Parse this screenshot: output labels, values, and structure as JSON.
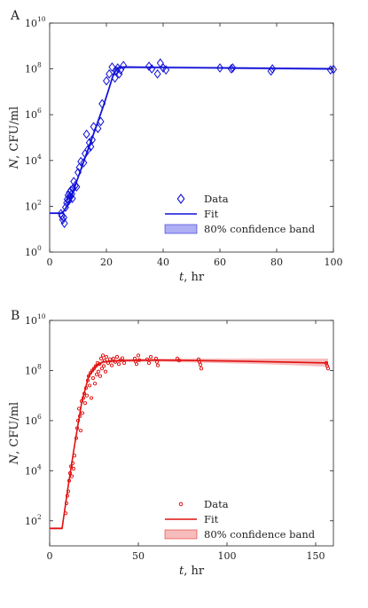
{
  "chart_data": [
    {
      "panel_label": "A",
      "type": "scatter",
      "title": "",
      "xlabel": "t",
      "xunit": ", hr",
      "ylabel": "N",
      "yunit": ", CFU/ml",
      "xlim": [
        0,
        100
      ],
      "ylim_log10": [
        0,
        10
      ],
      "y_scale": "log",
      "xticks": [
        "0",
        "20",
        "40",
        "60",
        "80",
        "100"
      ],
      "yticks": [
        "10",
        "10",
        "10",
        "10",
        "10",
        "10"
      ],
      "ytick_exponents": [
        "0",
        "2",
        "4",
        "6",
        "8",
        "10"
      ],
      "marker": "diamond",
      "color": "#1010d8",
      "band_color": "#8c8cf0",
      "grid": false,
      "legend_position": "bottom-right",
      "legend": [
        "Data",
        "Fit",
        "80% confidence band"
      ],
      "series": [
        {
          "kind": "data",
          "points": [
            [
              4,
              48
            ],
            [
              4.3,
              38
            ],
            [
              4.6,
              26
            ],
            [
              5,
              32
            ],
            [
              5.2,
              18
            ],
            [
              5.6,
              90
            ],
            [
              6,
              140
            ],
            [
              6.2,
              200
            ],
            [
              6.5,
              300
            ],
            [
              6.8,
              180
            ],
            [
              7,
              400
            ],
            [
              7.3,
              260
            ],
            [
              7.5,
              500
            ],
            [
              7.8,
              350
            ],
            [
              8,
              220
            ],
            [
              8.3,
              600
            ],
            [
              8.5,
              1200
            ],
            [
              9,
              800
            ],
            [
              9.5,
              700
            ],
            [
              10,
              3000
            ],
            [
              10.5,
              5000
            ],
            [
              11,
              9000
            ],
            [
              12,
              8000
            ],
            [
              12.5,
              20000
            ],
            [
              13,
              140000
            ],
            [
              13.5,
              30000
            ],
            [
              14,
              60000
            ],
            [
              14.5,
              40000
            ],
            [
              15,
              80000
            ],
            [
              15.5,
              300000
            ],
            [
              17,
              250000
            ],
            [
              18,
              500000
            ],
            [
              18.5,
              3000000
            ],
            [
              20,
              30000000
            ],
            [
              21,
              60000000
            ],
            [
              22,
              120000000
            ],
            [
              23,
              40000000
            ],
            [
              23.5,
              80000000
            ],
            [
              24,
              110000000
            ],
            [
              24.5,
              60000000
            ],
            [
              25,
              90000000
            ],
            [
              26,
              140000000
            ],
            [
              35,
              130000000
            ],
            [
              36,
              100000000
            ],
            [
              38,
              60000000
            ],
            [
              39,
              180000000
            ],
            [
              40,
              110000000
            ],
            [
              41,
              90000000
            ],
            [
              60,
              110000000
            ],
            [
              64,
              100000000
            ],
            [
              64.5,
              110000000
            ],
            [
              78,
              80000000
            ],
            [
              78.5,
              100000000
            ],
            [
              99,
              90000000
            ],
            [
              100,
              95000000
            ]
          ]
        },
        {
          "kind": "fit",
          "points": [
            [
              0,
              50
            ],
            [
              4.5,
              50
            ],
            [
              7,
              150
            ],
            [
              10,
              1800
            ],
            [
              13,
              20000
            ],
            [
              16,
              220000
            ],
            [
              19,
              2500000
            ],
            [
              21,
              15000000
            ],
            [
              22.5,
              60000000
            ],
            [
              24,
              110000000
            ],
            [
              26,
              120000000
            ],
            [
              40,
              115000000
            ],
            [
              60,
              110000000
            ],
            [
              80,
              105000000
            ],
            [
              100,
              100000000
            ]
          ]
        },
        {
          "kind": "band",
          "upper": [
            [
              0,
              55
            ],
            [
              4.5,
              55
            ],
            [
              7,
              190
            ],
            [
              10,
              2300
            ],
            [
              13,
              26000
            ],
            [
              16,
              290000
            ],
            [
              19,
              3300000
            ],
            [
              21,
              20000000
            ],
            [
              22.5,
              80000000
            ],
            [
              24,
              130000000
            ],
            [
              26,
              135000000
            ],
            [
              40,
              130000000
            ],
            [
              60,
              124000000
            ],
            [
              80,
              118000000
            ],
            [
              100,
              112000000
            ]
          ],
          "lower": [
            [
              0,
              45
            ],
            [
              4.5,
              45
            ],
            [
              7,
              115
            ],
            [
              10,
              1400
            ],
            [
              13,
              15000
            ],
            [
              16,
              170000
            ],
            [
              19,
              1900000
            ],
            [
              21,
              11000000
            ],
            [
              22.5,
              45000000
            ],
            [
              24,
              90000000
            ],
            [
              26,
              105000000
            ],
            [
              40,
              102000000
            ],
            [
              60,
              98000000
            ],
            [
              80,
              93000000
            ],
            [
              100,
              88000000
            ]
          ]
        }
      ]
    },
    {
      "panel_label": "B",
      "type": "scatter",
      "title": "",
      "xlabel": "t",
      "xunit": ", hr",
      "ylabel": "N",
      "yunit": ", CFU/ml",
      "xlim": [
        0,
        160
      ],
      "ylim_log10": [
        1,
        10
      ],
      "y_scale": "log",
      "xticks": [
        "0",
        "50",
        "100",
        "150"
      ],
      "yticks": [
        "10",
        "10",
        "10",
        "10",
        "10"
      ],
      "ytick_exponents": [
        "2",
        "4",
        "6",
        "8",
        "10"
      ],
      "marker": "circle",
      "color": "#e01010",
      "band_color": "#f4a0a0",
      "grid": false,
      "legend_position": "bottom-right",
      "legend": [
        "Data",
        "Fit",
        "80% confidence band"
      ],
      "series": [
        {
          "kind": "data",
          "points": [
            [
              9,
              200
            ],
            [
              9.5,
              500
            ],
            [
              10,
              1000
            ],
            [
              10.5,
              1500
            ],
            [
              11,
              4000
            ],
            [
              11.5,
              8000
            ],
            [
              12,
              15000
            ],
            [
              12.5,
              6000
            ],
            [
              13,
              20000
            ],
            [
              13.5,
              12000
            ],
            [
              14,
              40000
            ],
            [
              15,
              200000
            ],
            [
              15.5,
              500000
            ],
            [
              16,
              1000000
            ],
            [
              16.5,
              3000000
            ],
            [
              17,
              1500000
            ],
            [
              17.5,
              400000
            ],
            [
              18,
              6000000
            ],
            [
              18.5,
              2000000
            ],
            [
              19,
              8000000
            ],
            [
              19.5,
              12000000
            ],
            [
              20,
              5000000
            ],
            [
              20.5,
              20000000
            ],
            [
              21,
              10000000
            ],
            [
              21.5,
              40000000
            ],
            [
              22,
              60000000
            ],
            [
              22.5,
              25000000
            ],
            [
              23,
              80000000
            ],
            [
              23.5,
              8000000
            ],
            [
              24,
              100000000
            ],
            [
              24.5,
              50000000
            ],
            [
              25,
              120000000
            ],
            [
              25.5,
              30000000
            ],
            [
              26,
              150000000
            ],
            [
              26.5,
              70000000
            ],
            [
              27,
              200000000
            ],
            [
              27.5,
              90000000
            ],
            [
              28,
              180000000
            ],
            [
              28.5,
              60000000
            ],
            [
              29,
              300000000
            ],
            [
              29.5,
              120000000
            ],
            [
              30,
              400000000
            ],
            [
              30.5,
              150000000
            ],
            [
              31,
              250000000
            ],
            [
              31.5,
              90000000
            ],
            [
              32,
              350000000
            ],
            [
              33,
              200000000
            ],
            [
              34,
              280000000
            ],
            [
              35,
              160000000
            ],
            [
              36,
              300000000
            ],
            [
              37,
              220000000
            ],
            [
              38,
              350000000
            ],
            [
              39,
              180000000
            ],
            [
              40,
              260000000
            ],
            [
              41,
              310000000
            ],
            [
              42,
              200000000
            ],
            [
              48,
              300000000
            ],
            [
              48.5,
              230000000
            ],
            [
              49,
              180000000
            ],
            [
              50,
              400000000
            ],
            [
              50.5,
              260000000
            ],
            [
              55,
              280000000
            ],
            [
              56,
              200000000
            ],
            [
              57,
              350000000
            ],
            [
              60,
              300000000
            ],
            [
              60.5,
              220000000
            ],
            [
              61,
              160000000
            ],
            [
              72,
              300000000
            ],
            [
              73,
              250000000
            ],
            [
              84,
              280000000
            ],
            [
              84.5,
              220000000
            ],
            [
              85,
              170000000
            ],
            [
              85.5,
              120000000
            ],
            [
              156,
              200000000
            ],
            [
              156.5,
              150000000
            ],
            [
              157,
              120000000
            ]
          ]
        },
        {
          "kind": "fit",
          "points": [
            [
              0,
              50
            ],
            [
              7,
              50
            ],
            [
              10,
              1500
            ],
            [
              14,
              100000
            ],
            [
              18,
              5000000
            ],
            [
              22,
              60000000
            ],
            [
              26,
              150000000
            ],
            [
              30,
              220000000
            ],
            [
              40,
              250000000
            ],
            [
              60,
              260000000
            ],
            [
              80,
              250000000
            ],
            [
              100,
              240000000
            ],
            [
              130,
              220000000
            ],
            [
              157,
              200000000
            ]
          ]
        },
        {
          "kind": "band",
          "upper": [
            [
              0,
              55
            ],
            [
              7,
              55
            ],
            [
              10,
              2000
            ],
            [
              14,
              130000
            ],
            [
              18,
              6500000
            ],
            [
              22,
              75000000
            ],
            [
              26,
              180000000
            ],
            [
              30,
              260000000
            ],
            [
              40,
              290000000
            ],
            [
              60,
              300000000
            ],
            [
              80,
              300000000
            ],
            [
              100,
              300000000
            ],
            [
              130,
              300000000
            ],
            [
              157,
              300000000
            ]
          ],
          "lower": [
            [
              0,
              45
            ],
            [
              7,
              45
            ],
            [
              10,
              1100
            ],
            [
              14,
              75000
            ],
            [
              18,
              3800000
            ],
            [
              22,
              48000000
            ],
            [
              26,
              125000000
            ],
            [
              30,
              190000000
            ],
            [
              40,
              215000000
            ],
            [
              60,
              225000000
            ],
            [
              80,
              210000000
            ],
            [
              100,
              195000000
            ],
            [
              130,
              170000000
            ],
            [
              157,
              140000000
            ]
          ]
        }
      ]
    }
  ]
}
